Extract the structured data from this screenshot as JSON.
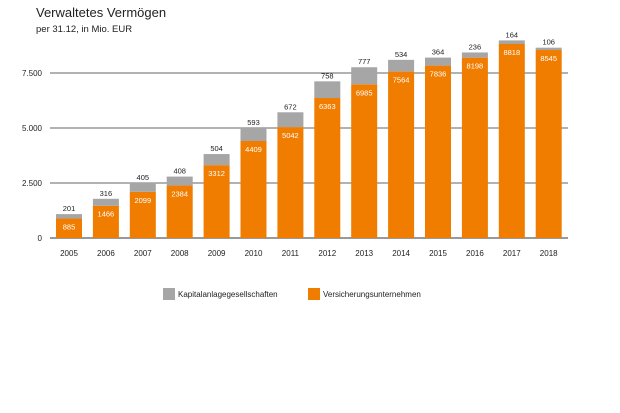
{
  "chart_data": {
    "type": "bar",
    "stacked": true,
    "title": "Verwaltetes Vermögen",
    "subtitle": "per 31.12, in Mio. EUR",
    "xlabel": "",
    "ylabel": "",
    "ylim": [
      0,
      9000
    ],
    "yticks": [
      0,
      2500,
      5000,
      7500
    ],
    "ytick_labels": [
      "0",
      "2.500",
      "5.000",
      "7.500"
    ],
    "grid": true,
    "legend_position": "bottom",
    "categories": [
      "2005",
      "2006",
      "2007",
      "2008",
      "2009",
      "2010",
      "2011",
      "2012",
      "2013",
      "2014",
      "2015",
      "2016",
      "2017",
      "2018"
    ],
    "series": [
      {
        "name": "Versicherungsunternehmen",
        "color": "#f07d00",
        "values": [
          885,
          1466,
          2099,
          2384,
          3312,
          4409,
          5042,
          6363,
          6985,
          7564,
          7836,
          8198,
          8818,
          8545
        ],
        "labels": [
          "885",
          "1466",
          "2099",
          "2384",
          "3312",
          "4409",
          "5042",
          "6363",
          "6985",
          "7564",
          "7836",
          "8198",
          "8818",
          "8545"
        ]
      },
      {
        "name": "Kapitalanlagegesellschaften",
        "color": "#a6a6a6",
        "values": [
          201,
          316,
          405,
          408,
          504,
          593,
          672,
          758,
          777,
          534,
          364,
          236,
          164,
          106
        ],
        "labels": [
          "201",
          "316",
          "405",
          "408",
          "504",
          "593",
          "672",
          "758",
          "777",
          "534",
          "364",
          "236",
          "164",
          "106"
        ]
      }
    ]
  }
}
